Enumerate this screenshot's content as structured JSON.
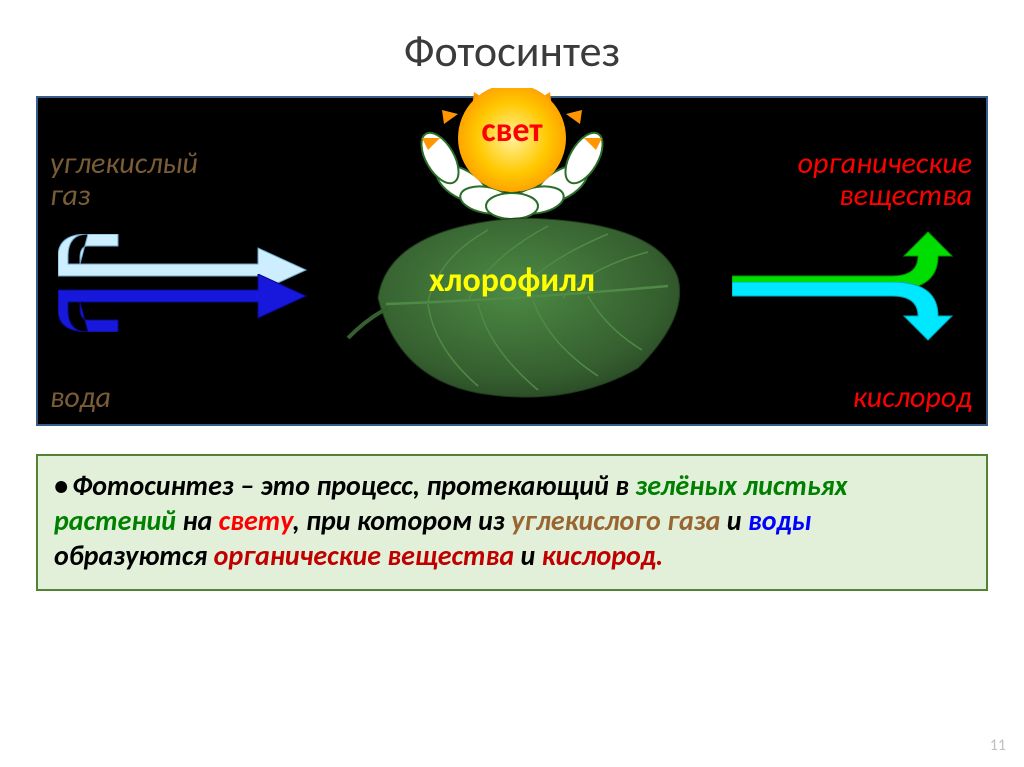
{
  "title": "Фотосинтез",
  "diagram": {
    "background": "#000000",
    "border_color": "#385d8a",
    "sun": {
      "label": "свет",
      "label_color": "#ff0000",
      "core_color": "#ffc800",
      "glow_color": "#ff9600",
      "petal_color": "#ffffff",
      "petal_outline": "#2a6e2a"
    },
    "leaf": {
      "label": "хлорофилл",
      "label_color": "#ffff00",
      "fill": "#3a6b34",
      "vein_color": "#4f8a46"
    },
    "inputs": {
      "co2": {
        "text": "углекислый\nгаз",
        "color": "#7a5c36",
        "arrow_color": "#cceeff",
        "arrow_type": "curved-down-right"
      },
      "water": {
        "text": "вода",
        "color": "#7a5c36",
        "arrow_color": "#1818dd",
        "arrow_type": "curved-up-right"
      }
    },
    "outputs": {
      "organic": {
        "text": "органические\nвещества",
        "color": "#ff0000",
        "arrow_color": "#00dd00",
        "arrow_type": "right-up"
      },
      "oxygen": {
        "text": "кислород",
        "color": "#ff0000",
        "arrow_color": "#00e8ff",
        "arrow_type": "right-down"
      }
    }
  },
  "definition": {
    "border_color": "#548235",
    "background": "#e2f0d9",
    "fontsize": 28,
    "segments": [
      {
        "text": "Фотосинтез – это процесс, протекающий в ",
        "color": "#000000"
      },
      {
        "text": "зелёных листьях растений ",
        "color": "#008000"
      },
      {
        "text": "на ",
        "color": "#000000"
      },
      {
        "text": "свету",
        "color": "#ff0000"
      },
      {
        "text": ", при котором из ",
        "color": "#000000"
      },
      {
        "text": "углекислого газа ",
        "color": "#996633"
      },
      {
        "text": "и ",
        "color": "#000000"
      },
      {
        "text": "воды ",
        "color": "#0000ff"
      },
      {
        "text": "образуются ",
        "color": "#000000"
      },
      {
        "text": "органические вещества ",
        "color": "#c00000"
      },
      {
        "text": "и ",
        "color": "#000000"
      },
      {
        "text": "кислород.",
        "color": "#c00000"
      }
    ]
  },
  "page_number": "11"
}
